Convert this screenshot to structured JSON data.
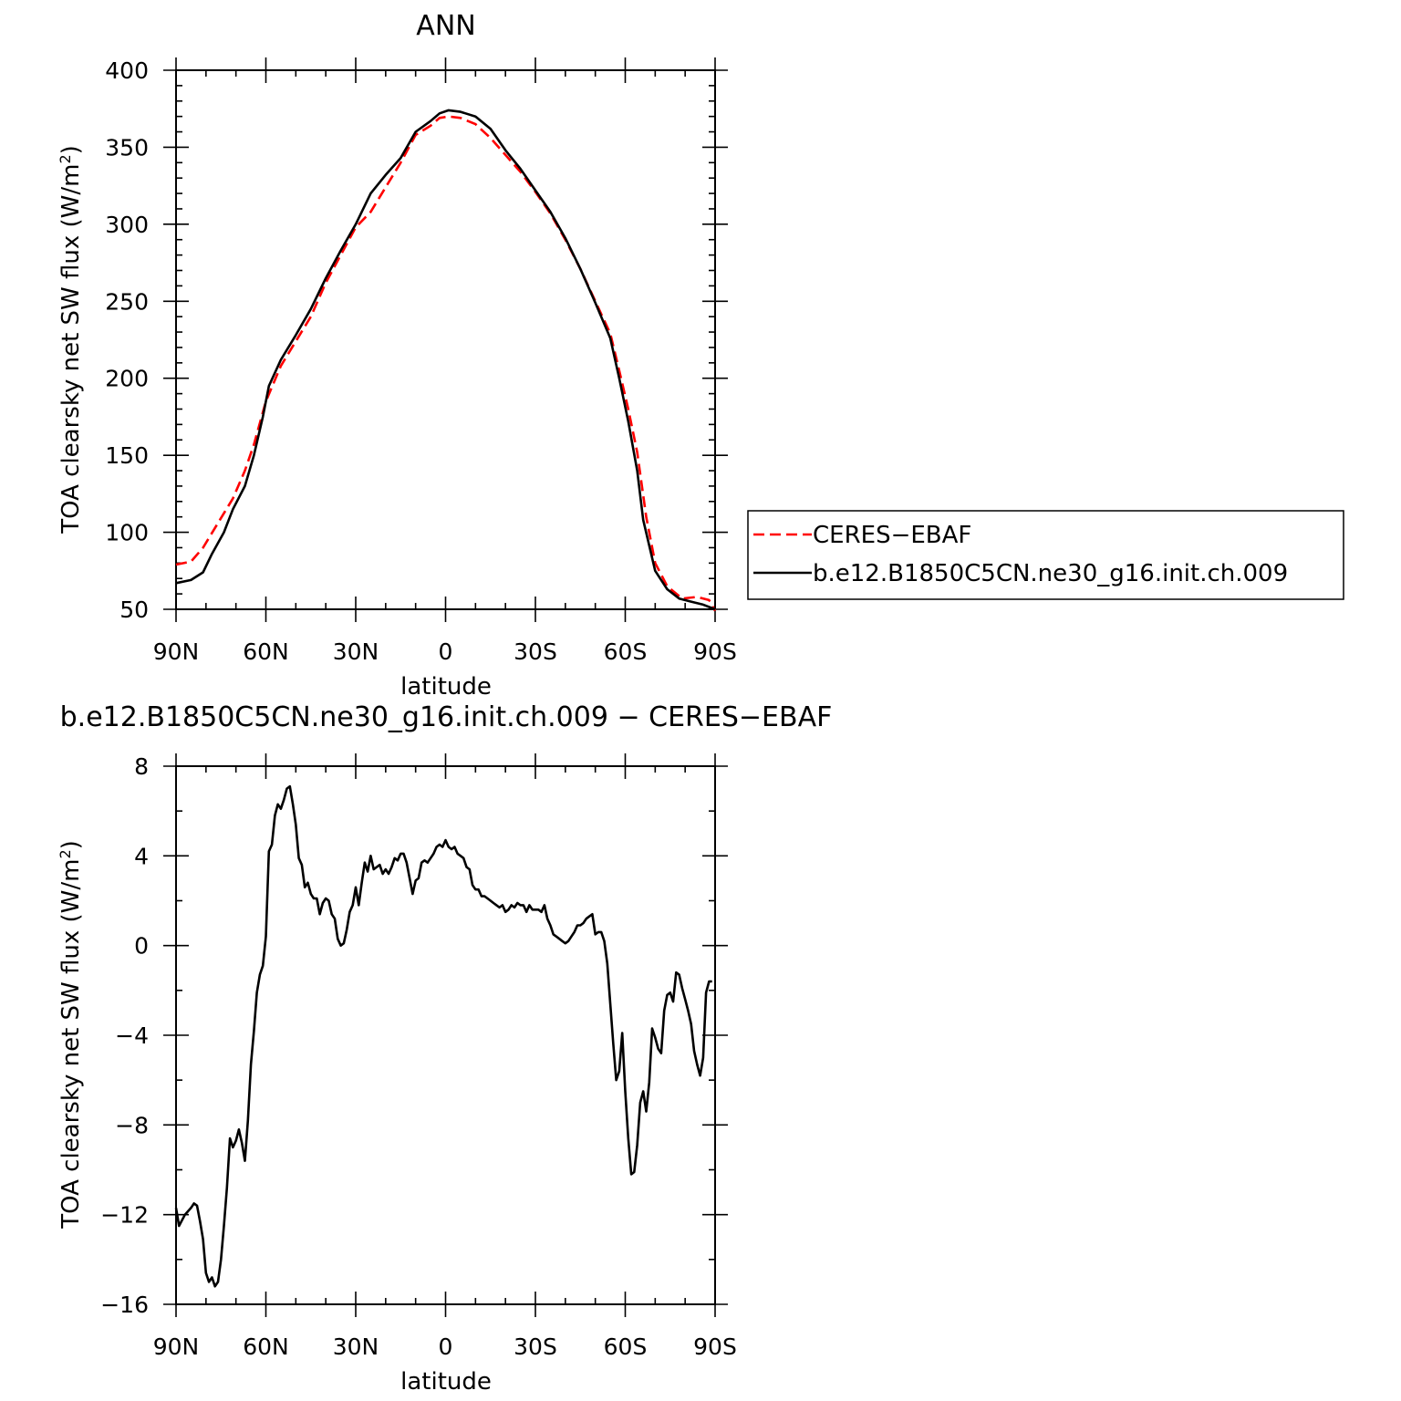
{
  "chart_data": [
    {
      "type": "line",
      "title": "ANN",
      "xlabel": "latitude",
      "ylabel": "TOA clearsky net SW flux (W/m",
      "ylabel_sup": "2",
      "ylabel_tail": ")",
      "xlim": [
        90,
        -90
      ],
      "ylim": [
        50,
        400
      ],
      "xticks": [
        90,
        60,
        30,
        0,
        -30,
        -60,
        -90
      ],
      "xtick_labels": [
        "90N",
        "60N",
        "30N",
        "0",
        "30S",
        "60S",
        "90S"
      ],
      "yticks": [
        50,
        100,
        150,
        200,
        250,
        300,
        350,
        400
      ],
      "ytick_labels": [
        "50",
        "100",
        "150",
        "200",
        "250",
        "300",
        "350",
        "400"
      ],
      "legend": {
        "position": "right"
      },
      "series": [
        {
          "name": "CERES−EBAF",
          "color": "#ff0000",
          "style": "dashed",
          "points": [
            [
              90,
              79
            ],
            [
              85,
              81
            ],
            [
              81,
              90
            ],
            [
              76,
              106
            ],
            [
              71,
              122
            ],
            [
              67,
              140
            ],
            [
              64,
              157
            ],
            [
              60,
              185
            ],
            [
              55,
              208
            ],
            [
              50,
              224
            ],
            [
              45,
              240
            ],
            [
              40,
              262
            ],
            [
              35,
              280
            ],
            [
              30,
              298
            ],
            [
              25,
              308
            ],
            [
              20,
              324
            ],
            [
              15,
              340
            ],
            [
              10,
              358
            ],
            [
              5,
              364
            ],
            [
              2,
              369
            ],
            [
              -1,
              370
            ],
            [
              -5,
              369
            ],
            [
              -10,
              365
            ],
            [
              -15,
              356
            ],
            [
              -20,
              345
            ],
            [
              -25,
              334
            ],
            [
              -30,
              321
            ],
            [
              -35,
              307
            ],
            [
              -40,
              290
            ],
            [
              -45,
              271
            ],
            [
              -50,
              250
            ],
            [
              -55,
              229
            ],
            [
              -58,
              205
            ],
            [
              -61,
              180
            ],
            [
              -64,
              152
            ],
            [
              -67,
              110
            ],
            [
              -70,
              80
            ],
            [
              -74,
              65
            ],
            [
              -79,
              57
            ],
            [
              -84,
              58
            ],
            [
              -88,
              56
            ],
            [
              -90,
              49
            ]
          ]
        },
        {
          "name": "b.e12.B1850C5CN.ne30_g16.init.ch.009",
          "color": "#000000",
          "style": "solid",
          "points": [
            [
              90,
              67
            ],
            [
              85,
              69
            ],
            [
              81,
              74
            ],
            [
              78,
              86
            ],
            [
              74,
              100
            ],
            [
              71,
              115
            ],
            [
              67,
              130
            ],
            [
              64,
              150
            ],
            [
              61,
              175
            ],
            [
              59,
              195
            ],
            [
              55,
              212
            ],
            [
              50,
              228
            ],
            [
              45,
              245
            ],
            [
              40,
              265
            ],
            [
              35,
              283
            ],
            [
              30,
              300
            ],
            [
              25,
              320
            ],
            [
              20,
              332
            ],
            [
              15,
              343
            ],
            [
              10,
              360
            ],
            [
              5,
              367
            ],
            [
              2,
              372
            ],
            [
              -1,
              374
            ],
            [
              -5,
              373
            ],
            [
              -10,
              370
            ],
            [
              -15,
              362
            ],
            [
              -20,
              348
            ],
            [
              -25,
              336
            ],
            [
              -30,
              322
            ],
            [
              -35,
              308
            ],
            [
              -40,
              291
            ],
            [
              -45,
              271
            ],
            [
              -50,
              249
            ],
            [
              -55,
              226
            ],
            [
              -58,
              200
            ],
            [
              -61,
              172
            ],
            [
              -64,
              140
            ],
            [
              -66,
              108
            ],
            [
              -70,
              75
            ],
            [
              -74,
              63
            ],
            [
              -78,
              57
            ],
            [
              -82,
              55
            ],
            [
              -86,
              53
            ],
            [
              -90,
              50
            ]
          ]
        }
      ]
    },
    {
      "type": "line",
      "title": "b.e12.B1850C5CN.ne30_g16.init.ch.009 − CERES−EBAF",
      "xlabel": "latitude",
      "ylabel": "TOA clearsky net SW flux (W/m",
      "ylabel_sup": "2",
      "ylabel_tail": ")",
      "xlim": [
        90,
        -90
      ],
      "ylim": [
        -16,
        8
      ],
      "xticks": [
        90,
        60,
        30,
        0,
        -30,
        -60,
        -90
      ],
      "xtick_labels": [
        "90N",
        "60N",
        "30N",
        "0",
        "30S",
        "60S",
        "90S"
      ],
      "yticks": [
        -16,
        -12,
        -8,
        -4,
        0,
        4,
        8
      ],
      "ytick_labels": [
        "−16",
        "−12",
        "−8",
        "−4",
        "0",
        "4",
        "8"
      ],
      "series": [
        {
          "name": "",
          "color": "#000000",
          "style": "solid",
          "points": [
            [
              90,
              -11.7
            ],
            [
              89,
              -12.5
            ],
            [
              87,
              -12.0
            ],
            [
              85,
              -11.7
            ],
            [
              84,
              -11.5
            ],
            [
              83,
              -11.6
            ],
            [
              82,
              -12.3
            ],
            [
              81,
              -13.1
            ],
            [
              80,
              -14.6
            ],
            [
              79,
              -15.0
            ],
            [
              78,
              -14.8
            ],
            [
              77,
              -15.2
            ],
            [
              76,
              -15.0
            ],
            [
              75,
              -14.0
            ],
            [
              74,
              -12.5
            ],
            [
              73,
              -10.8
            ],
            [
              72,
              -8.6
            ],
            [
              71,
              -9.0
            ],
            [
              70,
              -8.7
            ],
            [
              69,
              -8.2
            ],
            [
              68,
              -8.8
            ],
            [
              67,
              -9.6
            ],
            [
              66,
              -7.8
            ],
            [
              65,
              -5.3
            ],
            [
              64,
              -3.8
            ],
            [
              63,
              -2.1
            ],
            [
              62,
              -1.3
            ],
            [
              61,
              -0.9
            ],
            [
              60,
              0.4
            ],
            [
              59,
              4.2
            ],
            [
              58,
              4.5
            ],
            [
              57,
              5.8
            ],
            [
              56,
              6.3
            ],
            [
              55,
              6.1
            ],
            [
              54,
              6.5
            ],
            [
              53,
              7.0
            ],
            [
              52,
              7.1
            ],
            [
              51,
              6.3
            ],
            [
              50,
              5.4
            ],
            [
              49,
              3.9
            ],
            [
              48,
              3.6
            ],
            [
              47,
              2.6
            ],
            [
              46,
              2.8
            ],
            [
              45,
              2.3
            ],
            [
              44,
              2.1
            ],
            [
              43,
              2.1
            ],
            [
              42,
              1.4
            ],
            [
              41,
              1.9
            ],
            [
              40,
              2.1
            ],
            [
              39,
              2.0
            ],
            [
              38,
              1.4
            ],
            [
              37,
              1.2
            ],
            [
              36,
              0.3
            ],
            [
              35,
              0.0
            ],
            [
              34,
              0.1
            ],
            [
              33,
              0.7
            ],
            [
              32,
              1.5
            ],
            [
              31,
              1.8
            ],
            [
              30,
              2.6
            ],
            [
              29,
              1.8
            ],
            [
              28,
              2.8
            ],
            [
              27,
              3.7
            ],
            [
              26,
              3.3
            ],
            [
              25,
              4.0
            ],
            [
              24,
              3.4
            ],
            [
              23,
              3.5
            ],
            [
              22,
              3.6
            ],
            [
              21,
              3.2
            ],
            [
              20,
              3.4
            ],
            [
              19,
              3.2
            ],
            [
              18,
              3.5
            ],
            [
              17,
              3.9
            ],
            [
              16,
              3.8
            ],
            [
              15,
              4.1
            ],
            [
              14,
              4.1
            ],
            [
              13,
              3.7
            ],
            [
              12,
              3.0
            ],
            [
              11,
              2.3
            ],
            [
              10,
              2.9
            ],
            [
              9,
              3.0
            ],
            [
              8,
              3.7
            ],
            [
              7,
              3.8
            ],
            [
              6,
              3.7
            ],
            [
              5,
              3.9
            ],
            [
              4,
              4.1
            ],
            [
              3,
              4.4
            ],
            [
              2,
              4.5
            ],
            [
              1,
              4.4
            ],
            [
              0,
              4.7
            ],
            [
              -1,
              4.4
            ],
            [
              -2,
              4.3
            ],
            [
              -3,
              4.4
            ],
            [
              -4,
              4.1
            ],
            [
              -5,
              4.0
            ],
            [
              -6,
              3.9
            ],
            [
              -7,
              3.5
            ],
            [
              -8,
              3.4
            ],
            [
              -9,
              2.7
            ],
            [
              -10,
              2.5
            ],
            [
              -11,
              2.5
            ],
            [
              -12,
              2.2
            ],
            [
              -13,
              2.2
            ],
            [
              -14,
              2.1
            ],
            [
              -15,
              2.0
            ],
            [
              -16,
              1.9
            ],
            [
              -17,
              1.8
            ],
            [
              -18,
              1.7
            ],
            [
              -19,
              1.8
            ],
            [
              -20,
              1.5
            ],
            [
              -21,
              1.6
            ],
            [
              -22,
              1.8
            ],
            [
              -23,
              1.7
            ],
            [
              -24,
              1.9
            ],
            [
              -25,
              1.8
            ],
            [
              -26,
              1.8
            ],
            [
              -27,
              1.5
            ],
            [
              -28,
              1.8
            ],
            [
              -29,
              1.6
            ],
            [
              -30,
              1.6
            ],
            [
              -31,
              1.6
            ],
            [
              -32,
              1.5
            ],
            [
              -33,
              1.8
            ],
            [
              -34,
              1.2
            ],
            [
              -35,
              0.9
            ],
            [
              -36,
              0.5
            ],
            [
              -37,
              0.4
            ],
            [
              -38,
              0.3
            ],
            [
              -39,
              0.2
            ],
            [
              -40,
              0.1
            ],
            [
              -41,
              0.2
            ],
            [
              -42,
              0.4
            ],
            [
              -43,
              0.6
            ],
            [
              -44,
              0.9
            ],
            [
              -45,
              0.9
            ],
            [
              -46,
              1.0
            ],
            [
              -47,
              1.2
            ],
            [
              -48,
              1.3
            ],
            [
              -49,
              1.4
            ],
            [
              -50,
              0.5
            ],
            [
              -51,
              0.6
            ],
            [
              -52,
              0.6
            ],
            [
              -53,
              0.2
            ],
            [
              -54,
              -0.8
            ],
            [
              -55,
              -2.6
            ],
            [
              -56,
              -4.4
            ],
            [
              -57,
              -6.0
            ],
            [
              -58,
              -5.6
            ],
            [
              -59,
              -3.9
            ],
            [
              -60,
              -6.5
            ],
            [
              -61,
              -8.6
            ],
            [
              -62,
              -10.2
            ],
            [
              -63,
              -10.1
            ],
            [
              -64,
              -8.9
            ],
            [
              -65,
              -7.0
            ],
            [
              -66,
              -6.5
            ],
            [
              -67,
              -7.4
            ],
            [
              -68,
              -6.1
            ],
            [
              -69,
              -3.7
            ],
            [
              -70,
              -4.1
            ],
            [
              -71,
              -4.6
            ],
            [
              -72,
              -4.8
            ],
            [
              -73,
              -2.9
            ],
            [
              -74,
              -2.2
            ],
            [
              -75,
              -2.1
            ],
            [
              -76,
              -2.5
            ],
            [
              -77,
              -1.2
            ],
            [
              -78,
              -1.3
            ],
            [
              -79,
              -1.9
            ],
            [
              -80,
              -2.4
            ],
            [
              -81,
              -2.9
            ],
            [
              -82,
              -3.5
            ],
            [
              -83,
              -4.7
            ],
            [
              -84,
              -5.3
            ],
            [
              -85,
              -5.8
            ],
            [
              -86,
              -5.0
            ],
            [
              -87,
              -2.1
            ],
            [
              -88,
              -1.6
            ],
            [
              -89,
              -1.6
            ]
          ]
        }
      ]
    }
  ],
  "legend_labels": [
    "CERES−EBAF",
    "b.e12.B1850C5CN.ne30_g16.init.ch.009"
  ]
}
